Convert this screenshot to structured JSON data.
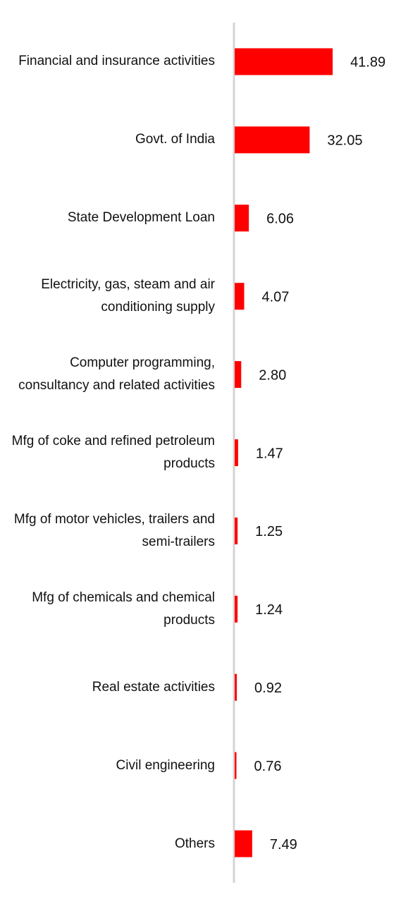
{
  "chart_data": {
    "type": "bar",
    "orientation": "horizontal",
    "color": "#ff0000",
    "categories": [
      "Financial and insurance activities",
      "Govt. of India",
      "State Development Loan",
      "Electricity, gas, steam and air conditioning supply",
      "Computer programming, consultancy and related activities",
      "Mfg of coke and refined petroleum products",
      "Mfg of motor vehicles, trailers and semi-trailers",
      "Mfg of chemicals and chemical products",
      "Real estate activities",
      "Civil engineering",
      "Others"
    ],
    "values": [
      41.89,
      32.05,
      6.06,
      4.07,
      2.8,
      1.47,
      1.25,
      1.24,
      0.92,
      0.76,
      7.49
    ],
    "value_labels": [
      "41.89",
      "32.05",
      "6.06",
      "4.07",
      "2.80",
      "1.47",
      "1.25",
      "1.24",
      "0.92",
      "0.76",
      "7.49"
    ]
  }
}
